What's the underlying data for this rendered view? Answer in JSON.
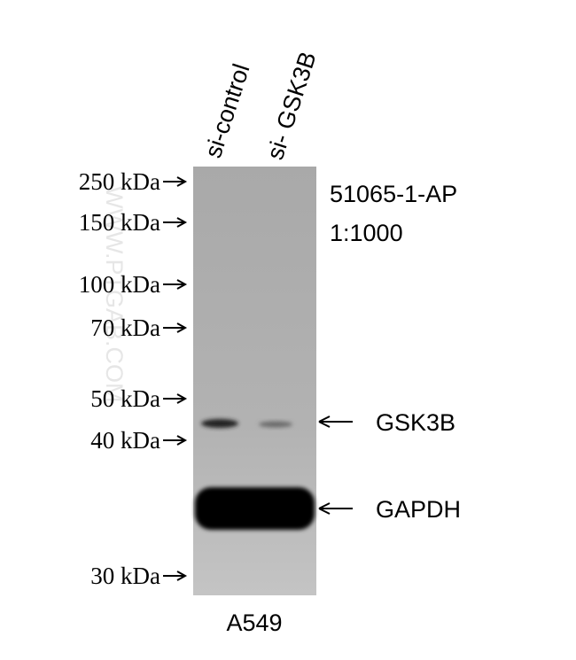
{
  "lanes": [
    "si-control",
    "si- GSK3B"
  ],
  "markers": [
    "250 kDa",
    "150 kDa",
    "100 kDa",
    "70 kDa",
    "50 kDa",
    "40 kDa",
    "30 kDa"
  ],
  "antibody": {
    "catalog": "51065-1-AP",
    "dilution": "1:1000"
  },
  "bands": [
    "GSK3B",
    "GAPDH"
  ],
  "cell_line": "A549",
  "watermark": "WWW.PTGAB.COM"
}
